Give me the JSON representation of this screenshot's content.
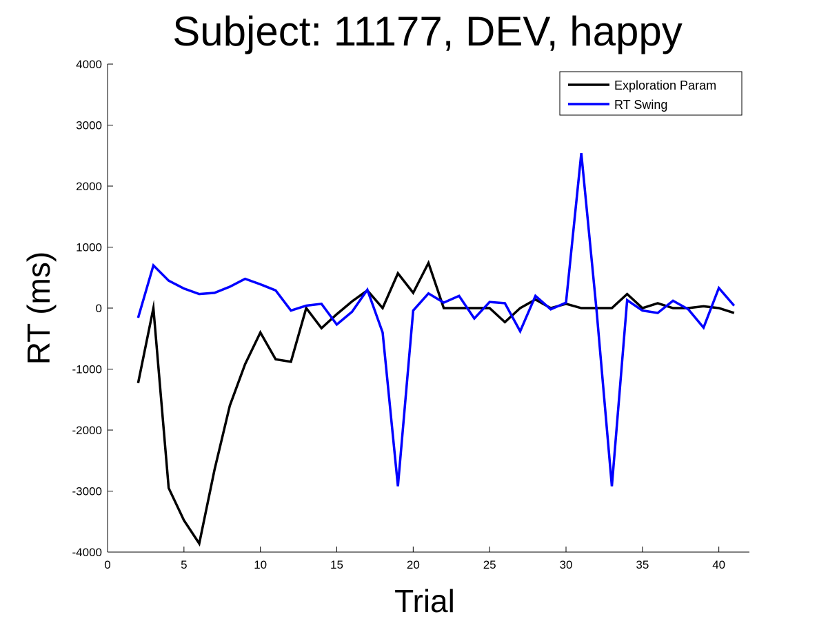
{
  "chart_data": {
    "type": "line",
    "title": "Subject: 11177, DEV, happy",
    "xlabel": "Trial",
    "ylabel": "RT (ms)",
    "xlim": [
      0,
      42
    ],
    "ylim": [
      -4000,
      4000
    ],
    "xticks": [
      0,
      5,
      10,
      15,
      20,
      25,
      30,
      35,
      40
    ],
    "yticks": [
      -4000,
      -3000,
      -2000,
      -1000,
      0,
      1000,
      2000,
      3000,
      4000
    ],
    "grid": false,
    "legend_position": "top-right",
    "x": [
      2,
      3,
      4,
      5,
      6,
      7,
      8,
      9,
      10,
      11,
      12,
      13,
      14,
      15,
      16,
      17,
      18,
      19,
      20,
      21,
      22,
      23,
      24,
      25,
      26,
      27,
      28,
      29,
      30,
      31,
      32,
      33,
      34,
      35,
      36,
      37,
      38,
      39,
      40,
      41
    ],
    "series": [
      {
        "name": "Exploration Param",
        "color": "#000000",
        "values": [
          -1230,
          0,
          -2950,
          -3480,
          -3860,
          -2650,
          -1600,
          -920,
          -400,
          -840,
          -880,
          0,
          -330,
          -100,
          110,
          290,
          0,
          570,
          250,
          740,
          0,
          0,
          0,
          0,
          -230,
          0,
          140,
          0,
          70,
          0,
          0,
          0,
          230,
          0,
          80,
          0,
          0,
          30,
          0,
          -80
        ]
      },
      {
        "name": "RT Swing",
        "color": "#0000ff",
        "values": [
          -160,
          700,
          450,
          320,
          230,
          250,
          350,
          480,
          390,
          290,
          -40,
          40,
          70,
          -270,
          -60,
          300,
          -400,
          -2920,
          -40,
          240,
          90,
          200,
          -170,
          100,
          80,
          -380,
          200,
          -20,
          90,
          2540,
          -40,
          -2920,
          130,
          -40,
          -80,
          120,
          -20,
          -320,
          330,
          40
        ]
      }
    ]
  }
}
